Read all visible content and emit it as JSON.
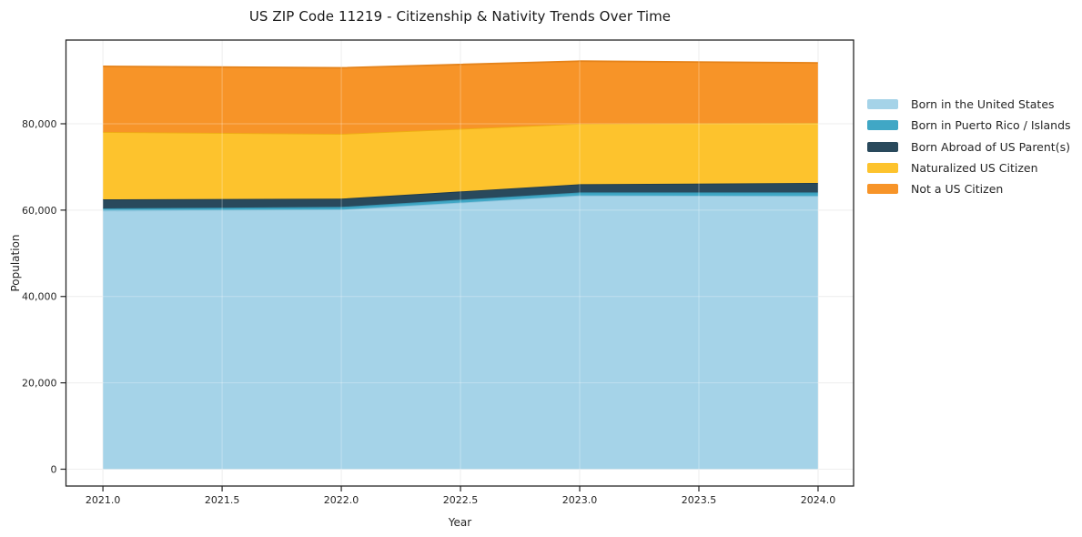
{
  "chart_data": {
    "type": "area",
    "stacked": true,
    "title": "US ZIP Code 11219 - Citizenship & Nativity Trends Over Time",
    "xlabel": "Year",
    "ylabel": "Population",
    "x": [
      2021,
      2022,
      2023,
      2024
    ],
    "series": [
      {
        "name": "Born in the United States",
        "color": "#a5d3e8",
        "edge_color": "#8bc2db",
        "values": [
          59900,
          60100,
          63400,
          63300
        ]
      },
      {
        "name": "Born in Puerto Rico / Islands",
        "color": "#40a7c5",
        "edge_color": "#3593b0",
        "values": [
          500,
          650,
          700,
          800
        ]
      },
      {
        "name": "Born Abroad of US Parent(s)",
        "color": "#29495c",
        "edge_color": "#203c4d",
        "values": [
          2100,
          1900,
          1900,
          2200
        ]
      },
      {
        "name": "Naturalized US Citizen",
        "color": "#fdc32d",
        "edge_color": "#eead12",
        "values": [
          15600,
          15000,
          14000,
          13900
        ]
      },
      {
        "name": "Not a US Citizen",
        "color": "#f79428",
        "edge_color": "#e5831a",
        "values": [
          15200,
          15300,
          14500,
          13900
        ]
      }
    ],
    "x_ticks": {
      "values": [
        2021.0,
        2021.5,
        2022.0,
        2022.5,
        2023.0,
        2023.5,
        2024.0
      ],
      "labels": [
        "2021.0",
        "2021.5",
        "2022.0",
        "2022.5",
        "2023.0",
        "2023.5",
        "2024.0"
      ]
    },
    "y_ticks": {
      "values": [
        0,
        20000,
        40000,
        60000,
        80000
      ],
      "labels": [
        "0",
        "20,000",
        "40,000",
        "60,000",
        "80,000"
      ]
    },
    "xlim": [
      2020.845,
      2024.149
    ],
    "ylim": [
      -3900,
      99390
    ],
    "grid": true,
    "legend_position": "right-outside",
    "axis_color": "#262626",
    "grid_color": "#e7e7e7",
    "overlay_grid_color": "rgba(255,255,255,0.30)",
    "background_color": "#ffffff"
  }
}
